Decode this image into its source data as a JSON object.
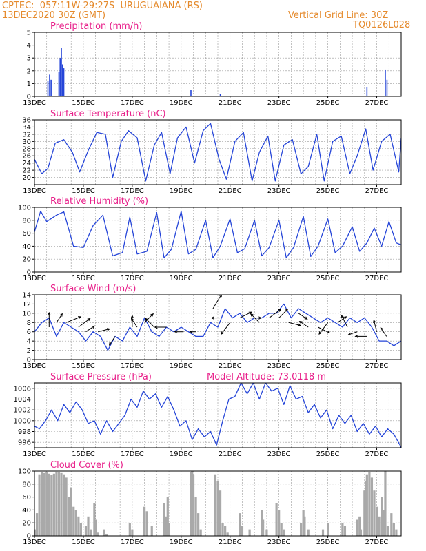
{
  "header": {
    "station": "CPTEC:  057:11W-29:27S  URUGUAIANA (RS)",
    "date": "13DEC2020 30Z (GMT)",
    "grid_note": "Vertical Grid Line: 30Z",
    "model_code": "TQ0126L028"
  },
  "colors": {
    "line": "#2545d8",
    "bar": "#2545d8",
    "cloud": "#a9a9a9",
    "title": "#e8208a",
    "header": "#e58a2c",
    "grid": "#9a9a9a"
  },
  "x_ticks": [
    "13DEC",
    "15DEC",
    "17DEC",
    "19DEC",
    "21DEC",
    "23DEC",
    "25DEC",
    "27DEC"
  ],
  "chart_data": [
    {
      "id": "precip",
      "type": "bar",
      "title": "Precipitation (mm/h)",
      "ylim": [
        0,
        5
      ],
      "yticks": [
        "0",
        "1",
        "2",
        "3",
        "4",
        "5"
      ],
      "x_range_days": [
        13,
        28
      ],
      "bars": [
        [
          13.55,
          1.2
        ],
        [
          13.62,
          1.7
        ],
        [
          13.68,
          1.3
        ],
        [
          14.0,
          1.9
        ],
        [
          14.05,
          3.0
        ],
        [
          14.1,
          3.8
        ],
        [
          14.15,
          2.5
        ],
        [
          14.2,
          2.2
        ],
        [
          19.4,
          0.5
        ],
        [
          20.6,
          0.2
        ],
        [
          26.6,
          0.7
        ],
        [
          27.35,
          2.1
        ],
        [
          27.42,
          1.3
        ]
      ]
    },
    {
      "id": "temp",
      "type": "line",
      "title": "Surface Temperature (nC)",
      "ylim": [
        18,
        36
      ],
      "yticks": [
        "20",
        "22",
        "24",
        "26",
        "28",
        "30",
        "32",
        "34",
        "36"
      ],
      "x": [
        13.0,
        13.3,
        13.55,
        13.85,
        14.2,
        14.55,
        14.85,
        15.2,
        15.55,
        15.9,
        16.2,
        16.55,
        16.85,
        17.2,
        17.55,
        17.9,
        18.2,
        18.55,
        18.85,
        19.2,
        19.55,
        19.9,
        20.2,
        20.55,
        20.85,
        21.2,
        21.55,
        21.9,
        22.2,
        22.55,
        22.85,
        23.2,
        23.55,
        23.9,
        24.2,
        24.55,
        24.85,
        25.2,
        25.55,
        25.9,
        26.2,
        26.55,
        26.85,
        27.2,
        27.55,
        27.9,
        28.0
      ],
      "y": [
        25,
        21,
        22.5,
        29.5,
        30.5,
        27,
        21.5,
        27.5,
        32.5,
        32,
        20,
        30,
        33,
        31,
        19,
        29,
        32.5,
        21,
        31,
        34,
        24,
        33,
        35,
        25,
        19.5,
        30,
        32.5,
        19,
        27,
        31.5,
        19,
        29,
        30.5,
        21,
        23,
        32,
        19,
        30,
        31.5,
        21,
        26,
        33.5,
        22,
        30,
        32,
        21.5,
        31
      ]
    },
    {
      "id": "rh",
      "type": "line",
      "title": "Relative Humidity (%)",
      "ylim": [
        0,
        100
      ],
      "yticks": [
        "0",
        "20",
        "40",
        "60",
        "80",
        "100"
      ],
      "x": [
        13.0,
        13.25,
        13.5,
        13.9,
        14.2,
        14.6,
        15.0,
        15.4,
        15.8,
        16.2,
        16.6,
        16.9,
        17.2,
        17.6,
        18.0,
        18.3,
        18.6,
        19.0,
        19.3,
        19.6,
        20.0,
        20.3,
        20.6,
        21.0,
        21.3,
        21.6,
        22.0,
        22.3,
        22.6,
        23.0,
        23.3,
        23.6,
        24.0,
        24.3,
        24.6,
        25.0,
        25.3,
        25.6,
        26.0,
        26.3,
        26.6,
        26.9,
        27.2,
        27.5,
        27.8,
        28.0
      ],
      "y": [
        62,
        94,
        78,
        88,
        93,
        40,
        38,
        72,
        88,
        25,
        30,
        85,
        28,
        32,
        92,
        22,
        35,
        94,
        28,
        35,
        80,
        22,
        40,
        82,
        30,
        36,
        80,
        25,
        38,
        80,
        22,
        38,
        86,
        24,
        40,
        82,
        30,
        40,
        70,
        32,
        45,
        68,
        40,
        78,
        45,
        42
      ]
    },
    {
      "id": "wind",
      "type": "line",
      "title": "Surface Wind (m/s)",
      "ylim": [
        0,
        14
      ],
      "yticks": [
        "0",
        "2",
        "4",
        "6",
        "8",
        "10",
        "12",
        "14"
      ],
      "x": [
        13.0,
        13.3,
        13.6,
        13.9,
        14.2,
        14.5,
        14.8,
        15.1,
        15.4,
        15.7,
        16.0,
        16.3,
        16.6,
        16.9,
        17.2,
        17.5,
        17.8,
        18.1,
        18.4,
        18.7,
        19.0,
        19.3,
        19.6,
        19.9,
        20.2,
        20.5,
        20.8,
        21.1,
        21.4,
        21.7,
        22.0,
        22.3,
        22.6,
        22.9,
        23.2,
        23.5,
        23.8,
        24.1,
        24.4,
        24.7,
        25.0,
        25.3,
        25.6,
        25.9,
        26.2,
        26.5,
        26.8,
        27.1,
        27.4,
        27.7,
        28.0
      ],
      "y": [
        6,
        8,
        9,
        5,
        8,
        7,
        6,
        4,
        6,
        5,
        2,
        5,
        4,
        7,
        5,
        9,
        6,
        5,
        7,
        6,
        7,
        6,
        5,
        5,
        8,
        7,
        11,
        9,
        10,
        8,
        9,
        9,
        10,
        10,
        12,
        9,
        11,
        10,
        9,
        8,
        9,
        8,
        7,
        9,
        8,
        9,
        7,
        4,
        4,
        3,
        4
      ],
      "arrows": [
        [
          13.6,
          7,
          0,
          -5
        ],
        [
          13.9,
          8,
          2,
          -3
        ],
        [
          14.3,
          8,
          5,
          -2
        ],
        [
          14.8,
          7,
          4,
          -3
        ],
        [
          15.1,
          6,
          3,
          -2
        ],
        [
          15.6,
          6,
          4,
          -1
        ],
        [
          16.3,
          5,
          -2,
          3
        ],
        [
          17.0,
          7,
          0,
          -4
        ],
        [
          17.2,
          7,
          -2,
          -3
        ],
        [
          17.5,
          8,
          3,
          -3
        ],
        [
          17.9,
          7,
          -3,
          -3
        ],
        [
          18.4,
          7,
          -4,
          0
        ],
        [
          19.1,
          6,
          -3,
          0
        ],
        [
          19.6,
          6,
          -2,
          0
        ],
        [
          20.3,
          11,
          3,
          -5
        ],
        [
          20.6,
          9,
          -3,
          0
        ],
        [
          21.0,
          8,
          -3,
          4
        ],
        [
          21.4,
          9,
          4,
          -2
        ],
        [
          21.8,
          9,
          4,
          0
        ],
        [
          22.2,
          8,
          -3,
          -3
        ],
        [
          22.6,
          9,
          4,
          -3
        ],
        [
          23.0,
          9,
          3,
          -3
        ],
        [
          23.4,
          8,
          4,
          1
        ],
        [
          23.8,
          10,
          3,
          2
        ],
        [
          24.2,
          7,
          -3,
          -2
        ],
        [
          24.6,
          7,
          4,
          2
        ],
        [
          25.0,
          8,
          -3,
          4
        ],
        [
          25.4,
          8,
          3,
          -2
        ],
        [
          25.8,
          7,
          -2,
          -4
        ],
        [
          26.2,
          6,
          -3,
          1
        ],
        [
          26.6,
          5,
          -4,
          0
        ],
        [
          27.0,
          6,
          -1,
          -4
        ],
        [
          27.4,
          5,
          -2,
          -3
        ]
      ]
    },
    {
      "id": "press",
      "type": "line",
      "title": "Surface Pressure (hPa)",
      "annotation": "Model Altitude: 73.0118 m",
      "ylim": [
        995,
        1007
      ],
      "yticks": [
        "996",
        "998",
        "1000",
        "1002",
        "1004",
        "1006"
      ],
      "x": [
        13.0,
        13.2,
        13.45,
        13.7,
        13.95,
        14.2,
        14.45,
        14.7,
        14.95,
        15.2,
        15.45,
        15.7,
        15.95,
        16.2,
        16.45,
        16.7,
        16.95,
        17.2,
        17.45,
        17.7,
        17.95,
        18.2,
        18.45,
        18.7,
        18.95,
        19.2,
        19.45,
        19.7,
        19.95,
        20.2,
        20.45,
        20.7,
        20.95,
        21.2,
        21.45,
        21.7,
        21.95,
        22.2,
        22.45,
        22.7,
        22.95,
        23.2,
        23.45,
        23.7,
        23.95,
        24.2,
        24.45,
        24.7,
        24.95,
        25.2,
        25.45,
        25.7,
        25.95,
        26.2,
        26.45,
        26.7,
        26.95,
        27.2,
        27.45,
        27.7,
        27.95,
        28.0
      ],
      "y": [
        999,
        998.5,
        1000,
        1002,
        1000,
        1003,
        1001.5,
        1003.5,
        1002,
        999.5,
        1000,
        997.5,
        1000,
        998,
        999.5,
        1001,
        1004,
        1002.5,
        1005.5,
        1004,
        1005,
        1002.5,
        1004.5,
        1002,
        999,
        1000,
        996.5,
        998.5,
        997,
        998,
        995.5,
        1000,
        1004,
        1004.5,
        1007,
        1005,
        1007,
        1004,
        1007,
        1005.5,
        1006,
        1003,
        1006.5,
        1004,
        1004.5,
        1001.5,
        1003,
        1000.5,
        1002,
        998.5,
        1001,
        999.5,
        1001,
        998,
        999.5,
        997.5,
        999,
        997,
        998.5,
        997.5,
        995.5,
        995
      ]
    },
    {
      "id": "cloud",
      "type": "bar",
      "title": "Cloud Cover (%)",
      "ylim": [
        0,
        100
      ],
      "yticks": [
        "0",
        "20",
        "40",
        "60",
        "80",
        "100"
      ],
      "x_range_days": [
        13,
        28
      ],
      "bars": [
        [
          13.05,
          10
        ],
        [
          13.1,
          35
        ],
        [
          13.2,
          95
        ],
        [
          13.3,
          98
        ],
        [
          13.4,
          97
        ],
        [
          13.5,
          99
        ],
        [
          13.6,
          96
        ],
        [
          13.7,
          94
        ],
        [
          13.8,
          96
        ],
        [
          13.9,
          99
        ],
        [
          14.0,
          98
        ],
        [
          14.1,
          97
        ],
        [
          14.2,
          95
        ],
        [
          14.3,
          90
        ],
        [
          14.4,
          60
        ],
        [
          14.5,
          75
        ],
        [
          14.6,
          45
        ],
        [
          14.7,
          40
        ],
        [
          14.8,
          30
        ],
        [
          14.9,
          20
        ],
        [
          15.1,
          15
        ],
        [
          15.2,
          30
        ],
        [
          15.3,
          10
        ],
        [
          15.45,
          50
        ],
        [
          15.5,
          25
        ],
        [
          15.6,
          5
        ],
        [
          15.85,
          10
        ],
        [
          15.95,
          3
        ],
        [
          16.9,
          20
        ],
        [
          17.0,
          10
        ],
        [
          17.5,
          45
        ],
        [
          17.6,
          38
        ],
        [
          17.8,
          15
        ],
        [
          18.3,
          50
        ],
        [
          18.4,
          30
        ],
        [
          18.45,
          60
        ],
        [
          18.5,
          20
        ],
        [
          19.4,
          98
        ],
        [
          19.45,
          100
        ],
        [
          19.5,
          95
        ],
        [
          19.6,
          60
        ],
        [
          19.7,
          35
        ],
        [
          19.8,
          10
        ],
        [
          20.4,
          95
        ],
        [
          20.5,
          85
        ],
        [
          20.6,
          70
        ],
        [
          20.7,
          20
        ],
        [
          20.8,
          15
        ],
        [
          20.9,
          5
        ],
        [
          21.4,
          35
        ],
        [
          21.5,
          15
        ],
        [
          21.8,
          10
        ],
        [
          22.3,
          40
        ],
        [
          22.35,
          25
        ],
        [
          22.5,
          10
        ],
        [
          22.9,
          50
        ],
        [
          23.0,
          40
        ],
        [
          23.1,
          20
        ],
        [
          23.2,
          10
        ],
        [
          23.9,
          20
        ],
        [
          24.0,
          40
        ],
        [
          24.05,
          30
        ],
        [
          24.2,
          10
        ],
        [
          24.8,
          10
        ],
        [
          25.0,
          20
        ],
        [
          25.6,
          20
        ],
        [
          25.7,
          15
        ],
        [
          26.2,
          25
        ],
        [
          26.3,
          30
        ],
        [
          26.35,
          10
        ],
        [
          26.5,
          70
        ],
        [
          26.55,
          85
        ],
        [
          26.6,
          95
        ],
        [
          26.7,
          98
        ],
        [
          26.8,
          90
        ],
        [
          26.9,
          70
        ],
        [
          27.0,
          45
        ],
        [
          27.1,
          30
        ],
        [
          27.2,
          60
        ],
        [
          27.3,
          40
        ],
        [
          27.35,
          100
        ],
        [
          27.45,
          15
        ],
        [
          27.6,
          35
        ],
        [
          27.7,
          20
        ],
        [
          27.8,
          10
        ]
      ]
    }
  ]
}
